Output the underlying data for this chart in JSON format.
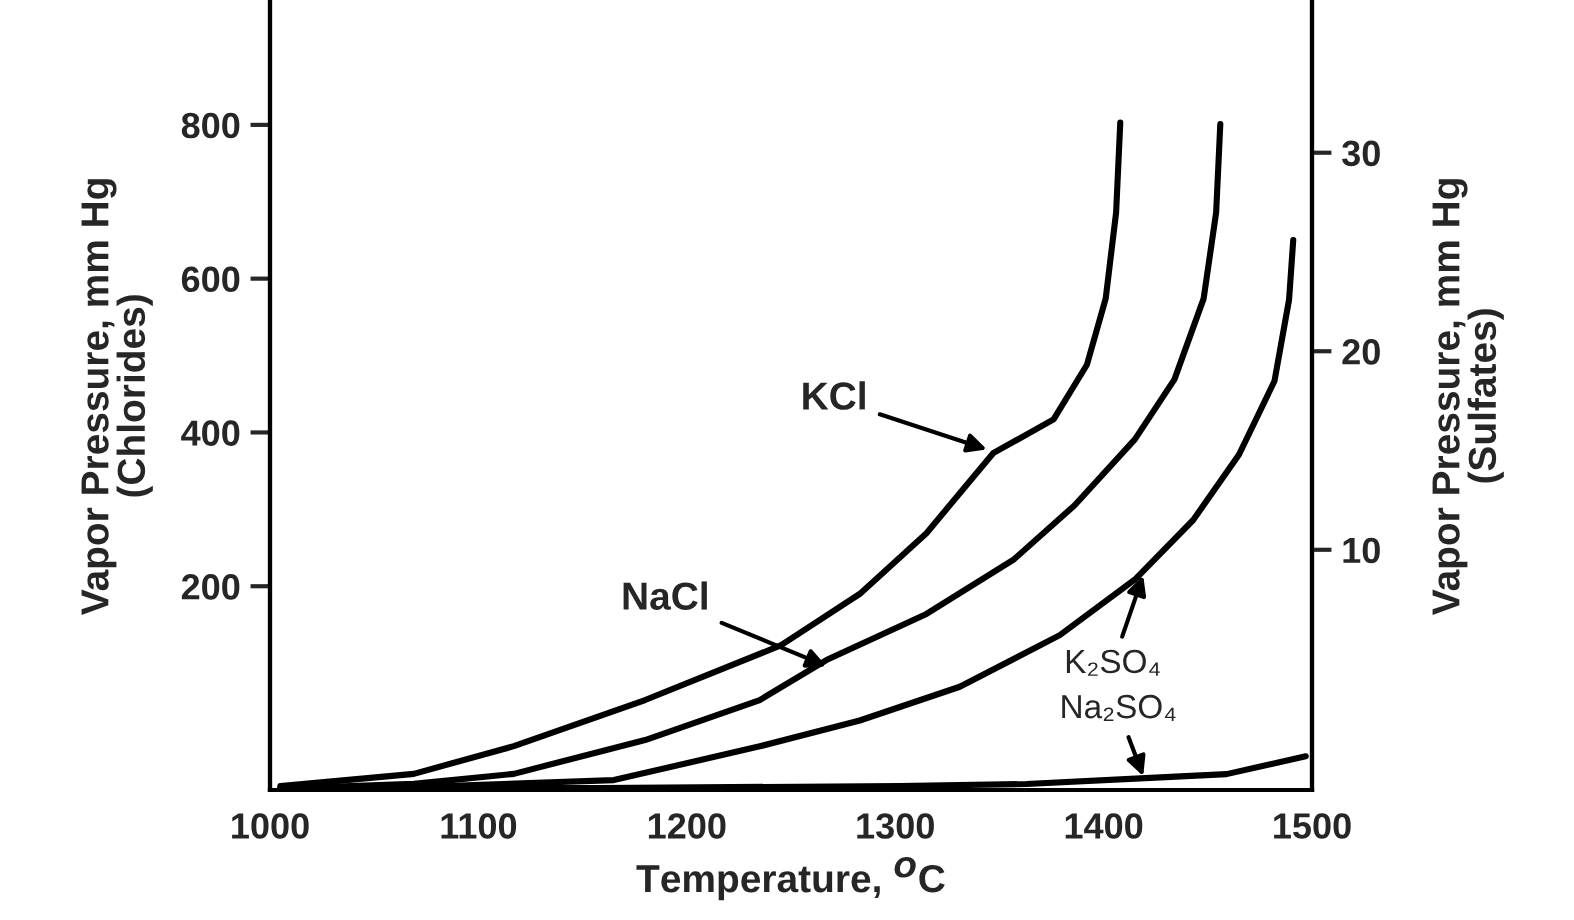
{
  "chart_data": {
    "type": "line",
    "xlabel": "Temperature, $^{O}$C",
    "ylabel": "Vapor Pressure, mm Hg\n(Chlorides)",
    "y2label": "Vapor Pressure, mm Hg\n(Sulfates)",
    "xlim": [
      1000,
      1500
    ],
    "xticks": [
      1000,
      1100,
      1200,
      1300,
      1400,
      1500
    ],
    "ylim": [
      -65,
      960
    ],
    "yticks": [
      200,
      400,
      600,
      800
    ],
    "y2lim": [
      -2.1,
      37.6
    ],
    "y2ticks": [
      10,
      20,
      30
    ],
    "grid": false,
    "legend": false,
    "marker": "none",
    "line_style": "solid",
    "series": [
      {
        "color": "#000000",
        "x": [
          1005,
          1069,
          1117,
          1180,
          1245,
          1283,
          1315,
          1347,
          1376,
          1392,
          1401,
          1406,
          1408
        ],
        "values": [
          -60,
          -44,
          -8,
          52,
          123,
          190,
          269,
          373,
          417,
          488,
          574,
          686,
          803
        ]
      },
      {
        "color": "#000000",
        "x": [
          1005,
          1069,
          1117,
          1180,
          1235,
          1267,
          1315,
          1357,
          1386,
          1415,
          1434,
          1448,
          1454,
          1456
        ],
        "values": [
          -63,
          -57,
          -44,
          0,
          52,
          104,
          164,
          235,
          305,
          391,
          469,
          574,
          686,
          801
        ]
      },
      {
        "color": "#000000",
        "axis": "y2",
        "x": [
          1005,
          1084,
          1165,
          1235,
          1283,
          1331,
          1379,
          1415,
          1443,
          1465,
          1482,
          1489,
          1491
        ],
        "values": [
          -2.0,
          -1.9,
          -1.6,
          0.1,
          1.4,
          3.1,
          5.7,
          8.5,
          11.5,
          14.8,
          18.5,
          22.6,
          25.6
        ]
      },
      {
        "color": "#000000",
        "axis": "y2",
        "x": [
          1005,
          1158,
          1302,
          1363,
          1420,
          1459,
          1497
        ],
        "values": [
          -2.0,
          -2.0,
          -1.9,
          -1.8,
          -1.5,
          -1.3,
          -0.4
        ]
      }
    ],
    "annotations": [
      {
        "text": "KCl",
        "x": 1344,
        "y": 378
      },
      {
        "text": "NaCl",
        "x": 1267,
        "y": 96
      },
      {
        "text": "K₂SO₄",
        "x": 1419,
        "y": 214
      },
      {
        "text": "Na₂SO₄",
        "x": 1419,
        "y": -47
      }
    ]
  }
}
